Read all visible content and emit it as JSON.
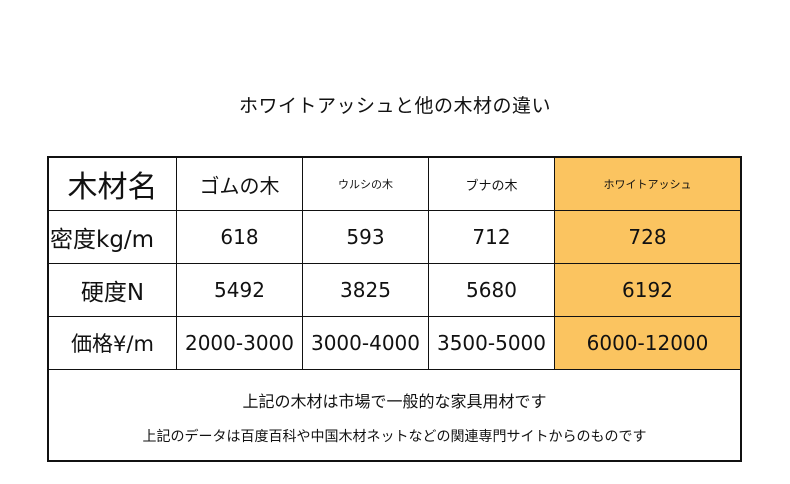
{
  "title": "ホワイトアッシュと他の木材の違い",
  "colors": {
    "highlight": "#fbc460",
    "border": "#111111"
  },
  "table": {
    "headers": [
      "木材名",
      "ゴムの木",
      "ウルシの木",
      "ブナの木",
      "ホワイトアッシュ"
    ],
    "rows": [
      {
        "label": "密度kg/m",
        "values": [
          "618",
          "593",
          "712",
          "728"
        ]
      },
      {
        "label": "硬度N",
        "values": [
          "5492",
          "3825",
          "5680",
          "6192"
        ]
      },
      {
        "label": "価格¥/m",
        "values": [
          "2000-3000",
          "3000-4000",
          "3500-5000",
          "6000-12000"
        ]
      }
    ],
    "highlight_column": "ホワイトアッシュ"
  },
  "notes": [
    "上記の木材は市場で一般的な家具用材です",
    "上記のデータは百度百科や中国木材ネットなどの関連専門サイトからのものです"
  ]
}
